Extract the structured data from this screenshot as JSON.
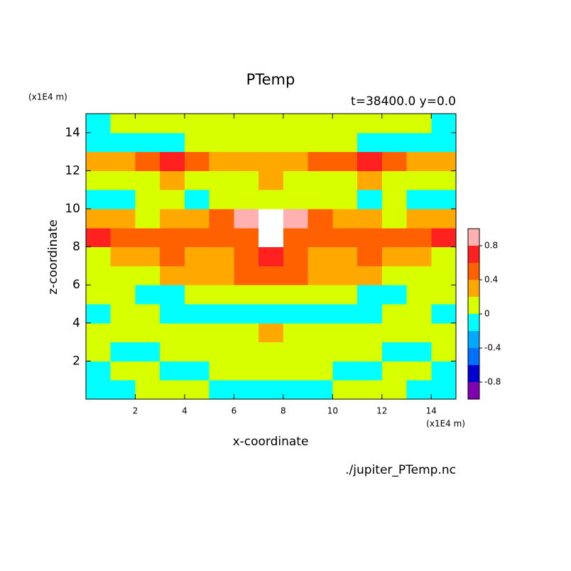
{
  "chart_data": {
    "type": "contour",
    "title": "PTemp",
    "subtitle": "t=38400.0 y=0.0",
    "x_label": "x-coordinate",
    "y_label": "z-coordinate",
    "x_unit": "(x1E4 m)",
    "y_unit": "(x1E4 m)",
    "footer": "./jupiter_PTemp.nc",
    "xlim": [
      0,
      15
    ],
    "ylim": [
      0,
      15
    ],
    "xticks": [
      2,
      4,
      6,
      8,
      10,
      12,
      14
    ],
    "yticks": [
      2,
      4,
      6,
      8,
      10,
      12,
      14
    ],
    "x": [
      0.5,
      1.5,
      2.5,
      3.5,
      4.5,
      5.5,
      6.5,
      7.5,
      8.5,
      9.5,
      10.5,
      11.5,
      12.5,
      13.5,
      14.5
    ],
    "y": [
      0.5,
      1.5,
      2.5,
      3.5,
      4.5,
      5.5,
      6.5,
      7.5,
      8.5,
      9.5,
      10.5,
      11.5,
      12.5,
      13.5,
      14.5
    ],
    "z": [
      [
        -0.1,
        -0.1,
        0.1,
        0.1,
        0.1,
        -0.1,
        -0.1,
        -0.1,
        -0.1,
        -0.1,
        0.1,
        0.1,
        0.1,
        -0.1,
        -0.1
      ],
      [
        -0.1,
        0.1,
        0.1,
        -0.1,
        -0.1,
        0.1,
        0.1,
        0.1,
        0.1,
        0.1,
        -0.1,
        -0.1,
        0.1,
        0.1,
        -0.1
      ],
      [
        0.1,
        -0.1,
        -0.1,
        0.1,
        0.1,
        0.1,
        0.1,
        0.1,
        0.1,
        0.1,
        0.1,
        0.1,
        -0.1,
        -0.1,
        0.1
      ],
      [
        0.1,
        0.1,
        0.1,
        0.1,
        0.1,
        0.1,
        0.1,
        0.3,
        0.1,
        0.1,
        0.1,
        0.1,
        0.1,
        0.1,
        0.1
      ],
      [
        -0.1,
        0.1,
        0.1,
        -0.1,
        -0.1,
        -0.1,
        -0.1,
        -0.1,
        -0.1,
        -0.1,
        -0.1,
        -0.1,
        0.1,
        0.1,
        -0.1
      ],
      [
        0.1,
        0.1,
        -0.1,
        -0.1,
        0.1,
        0.1,
        0.1,
        0.1,
        0.1,
        0.1,
        0.1,
        -0.1,
        -0.1,
        0.1,
        0.1
      ],
      [
        0.1,
        0.1,
        0.1,
        0.3,
        0.3,
        0.3,
        0.5,
        0.5,
        0.5,
        0.3,
        0.3,
        0.3,
        0.1,
        0.1,
        0.1
      ],
      [
        0.1,
        0.3,
        0.3,
        0.5,
        0.3,
        0.3,
        0.5,
        0.7,
        0.5,
        0.3,
        0.3,
        0.5,
        0.3,
        0.3,
        0.1
      ],
      [
        0.7,
        0.5,
        0.5,
        0.5,
        0.5,
        0.5,
        0.5,
        1.1,
        0.5,
        0.5,
        0.5,
        0.5,
        0.5,
        0.5,
        0.7
      ],
      [
        0.3,
        0.3,
        0.1,
        0.3,
        0.3,
        0.5,
        0.9,
        1.1,
        0.9,
        0.5,
        0.3,
        0.3,
        0.1,
        0.3,
        0.3
      ],
      [
        -0.1,
        -0.1,
        0.1,
        0.1,
        -0.1,
        0.1,
        0.1,
        0.1,
        0.1,
        0.1,
        0.1,
        -0.1,
        0.1,
        -0.1,
        -0.1
      ],
      [
        0.1,
        0.1,
        0.1,
        0.3,
        0.1,
        0.1,
        0.1,
        0.3,
        0.1,
        0.1,
        0.1,
        0.3,
        0.1,
        0.1,
        0.1
      ],
      [
        0.3,
        0.3,
        0.5,
        0.7,
        0.5,
        0.3,
        0.3,
        0.3,
        0.3,
        0.5,
        0.5,
        0.7,
        0.5,
        0.3,
        0.3
      ],
      [
        -0.1,
        -0.1,
        -0.1,
        -0.1,
        0.1,
        0.1,
        0.1,
        0.1,
        0.1,
        0.1,
        0.1,
        -0.1,
        -0.1,
        -0.1,
        -0.1
      ],
      [
        -0.1,
        0.1,
        0.1,
        0.1,
        0.1,
        0.1,
        0.1,
        0.1,
        0.1,
        0.1,
        0.1,
        0.1,
        0.1,
        0.1,
        -0.1
      ]
    ],
    "levels": [
      -1,
      -0.8,
      -0.6,
      -0.4,
      -0.2,
      0,
      0.2,
      0.4,
      0.6,
      0.8,
      1
    ],
    "colors": [
      "#8000b0",
      "#0000d0",
      "#0070ff",
      "#00a8ff",
      "#00ffff",
      "#d8ff00",
      "#ffa800",
      "#ff6000",
      "#ff2020",
      "#ffb0b0"
    ],
    "overflow_color": "#ffffff",
    "colorbar_ticks": [
      -0.8,
      -0.4,
      0,
      0.4,
      0.8
    ]
  }
}
